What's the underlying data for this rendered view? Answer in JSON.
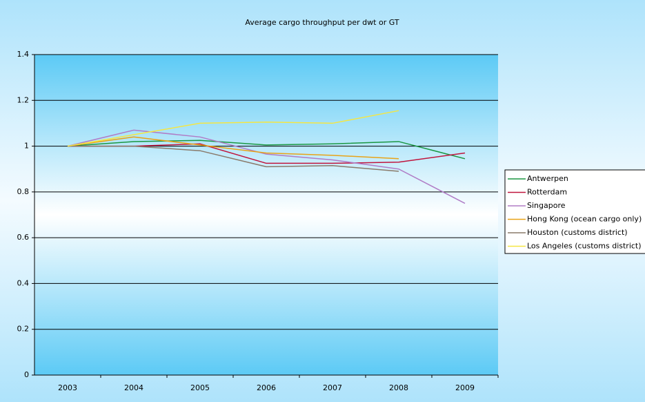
{
  "chart_data": {
    "type": "line",
    "title": "Average cargo throughput per dwt or GT",
    "categories": [
      "2003",
      "2004",
      "2005",
      "2006",
      "2007",
      "2008",
      "2009"
    ],
    "series": [
      {
        "name": "Antwerpen",
        "color": "#1a9641",
        "values": [
          1,
          1.02,
          1.025,
          1.005,
          1.01,
          1.02,
          0.945
        ]
      },
      {
        "name": "Rotterdam",
        "color": "#c0143c",
        "values": [
          1,
          1.0,
          1.01,
          0.925,
          0.925,
          0.93,
          0.97
        ]
      },
      {
        "name": "Singapore",
        "color": "#b07cc6",
        "values": [
          1,
          1.07,
          1.04,
          0.965,
          0.94,
          0.9,
          0.75
        ]
      },
      {
        "name": "Hong Kong (ocean cargo only)",
        "color": "#e8a317",
        "values": [
          1,
          1.04,
          1.005,
          0.97,
          0.96,
          0.945,
          null
        ]
      },
      {
        "name": "Houston (customs district)",
        "color": "#8a7a6a",
        "values": [
          1,
          1.0,
          0.98,
          0.91,
          0.915,
          0.89,
          null
        ]
      },
      {
        "name": "Los Angeles (customs district)",
        "color": "#f5e642",
        "values": [
          1,
          1.05,
          1.1,
          1.105,
          1.1,
          1.155,
          null
        ]
      }
    ],
    "ylim": [
      0,
      1.4
    ],
    "yticks": [
      0,
      0.2,
      0.4,
      0.6,
      0.8,
      1,
      1.2,
      1.4
    ],
    "grid": true,
    "legend": "right"
  }
}
